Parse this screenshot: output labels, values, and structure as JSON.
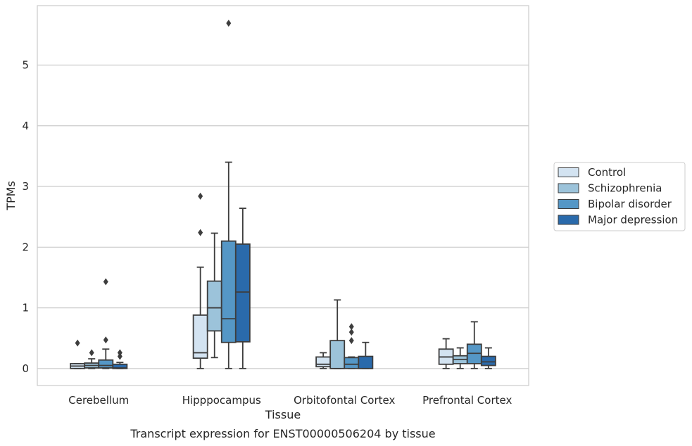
{
  "chart_data": {
    "type": "box",
    "title": "",
    "caption": "Transcript expression for ENST00000506204 by tissue",
    "xlabel": "Tissue",
    "ylabel": "TPMs",
    "ylim": [
      -0.28,
      5.98
    ],
    "yticks": [
      0,
      1,
      2,
      3,
      4,
      5
    ],
    "grid": "horizontal",
    "legend_position": "right",
    "categories": [
      "Cerebellum",
      "Hipppocampus",
      "Orbitofontal Cortex",
      "Prefrontal Cortex"
    ],
    "series": [
      {
        "name": "Control",
        "color": "#d3e3f1",
        "boxes": [
          {
            "whisker_low": 0.0,
            "q1": 0.0,
            "median": 0.04,
            "q3": 0.08,
            "whisker_high": 0.08,
            "outliers": [
              0.42
            ]
          },
          {
            "whisker_low": 0.0,
            "q1": 0.17,
            "median": 0.26,
            "q3": 0.88,
            "whisker_high": 1.67,
            "outliers": [
              2.24,
              2.84
            ]
          },
          {
            "whisker_low": 0.0,
            "q1": 0.03,
            "median": 0.07,
            "q3": 0.19,
            "whisker_high": 0.26,
            "outliers": []
          },
          {
            "whisker_low": 0.0,
            "q1": 0.07,
            "median": 0.19,
            "q3": 0.32,
            "whisker_high": 0.49,
            "outliers": []
          }
        ]
      },
      {
        "name": "Schizophrenia",
        "color": "#9cc3da",
        "boxes": [
          {
            "whisker_low": 0.0,
            "q1": 0.01,
            "median": 0.05,
            "q3": 0.09,
            "whisker_high": 0.16,
            "outliers": [
              0.26
            ]
          },
          {
            "whisker_low": 0.18,
            "q1": 0.62,
            "median": 1.0,
            "q3": 1.44,
            "whisker_high": 2.23,
            "outliers": []
          },
          {
            "whisker_low": 0.0,
            "q1": 0.0,
            "median": 0.0,
            "q3": 0.46,
            "whisker_high": 1.13,
            "outliers": []
          },
          {
            "whisker_low": 0.0,
            "q1": 0.08,
            "median": 0.15,
            "q3": 0.21,
            "whisker_high": 0.34,
            "outliers": []
          }
        ]
      },
      {
        "name": "Bipolar disorder",
        "color": "#5597c6",
        "boxes": [
          {
            "whisker_low": 0.0,
            "q1": 0.01,
            "median": 0.05,
            "q3": 0.14,
            "whisker_high": 0.32,
            "outliers": [
              0.47,
              1.43
            ]
          },
          {
            "whisker_low": 0.0,
            "q1": 0.43,
            "median": 0.82,
            "q3": 2.1,
            "whisker_high": 3.4,
            "outliers": [
              5.69
            ]
          },
          {
            "whisker_low": 0.0,
            "q1": 0.0,
            "median": 0.07,
            "q3": 0.18,
            "whisker_high": 0.19,
            "outliers": [
              0.46,
              0.6,
              0.69
            ]
          },
          {
            "whisker_low": 0.0,
            "q1": 0.08,
            "median": 0.25,
            "q3": 0.4,
            "whisker_high": 0.77,
            "outliers": []
          }
        ]
      },
      {
        "name": "Major depression",
        "color": "#2a6aab",
        "boxes": [
          {
            "whisker_low": 0.0,
            "q1": 0.0,
            "median": 0.01,
            "q3": 0.07,
            "whisker_high": 0.1,
            "outliers": [
              0.2,
              0.26
            ]
          },
          {
            "whisker_low": 0.0,
            "q1": 0.44,
            "median": 1.26,
            "q3": 2.05,
            "whisker_high": 2.64,
            "outliers": []
          },
          {
            "whisker_low": 0.0,
            "q1": 0.0,
            "median": 0.0,
            "q3": 0.2,
            "whisker_high": 0.43,
            "outliers": []
          },
          {
            "whisker_low": 0.0,
            "q1": 0.05,
            "median": 0.11,
            "q3": 0.2,
            "whisker_high": 0.34,
            "outliers": []
          }
        ]
      }
    ]
  }
}
